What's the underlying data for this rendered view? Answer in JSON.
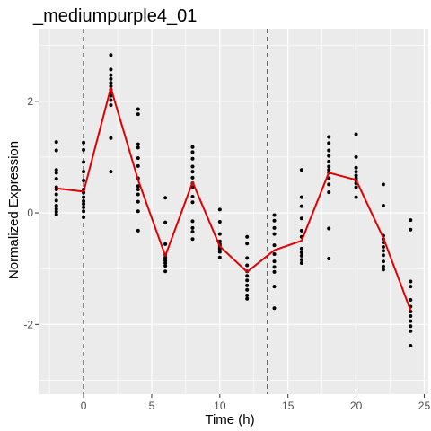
{
  "chart_data": {
    "type": "scatter",
    "title": "_mediumpurple4_01",
    "xlabel": "Time (h)",
    "ylabel": "Normalized Expression",
    "xlim": [
      -3.3,
      25.3
    ],
    "ylim": [
      -3.25,
      3.3
    ],
    "x_ticks": [
      0,
      5,
      10,
      15,
      20,
      25
    ],
    "y_ticks": [
      -2,
      0,
      2
    ],
    "x_tick_labels": [
      "0",
      "5",
      "10",
      "15",
      "20",
      "25"
    ],
    "y_tick_labels": [
      "-2",
      "0",
      "2"
    ],
    "grid": true,
    "background": "#ebebeb",
    "grid_major_color": "#ffffff",
    "point_color": "#000000",
    "line_color": "#e00000",
    "vlines": [
      0,
      13.5
    ],
    "points": [
      {
        "x": -2,
        "ys": [
          1.27,
          1.12,
          0.77,
          0.72,
          0.61,
          0.46,
          0.42,
          0.33,
          0.22,
          0.13,
          0.07,
          0.02,
          -0.03
        ]
      },
      {
        "x": 0,
        "ys": [
          1.26,
          1.13,
          0.91,
          0.74,
          0.58,
          0.42,
          0.36,
          0.28,
          0.21,
          0.16,
          0.1,
          0.03,
          -0.08
        ]
      },
      {
        "x": 2,
        "ys": [
          2.83,
          2.57,
          2.47,
          2.4,
          2.33,
          2.27,
          2.21,
          2.16,
          2.1,
          2.02,
          1.93,
          1.34,
          0.74
        ]
      },
      {
        "x": 4,
        "ys": [
          1.86,
          1.77,
          1.23,
          1.17,
          0.98,
          0.84,
          0.62,
          0.48,
          0.42,
          0.33,
          0.2,
          0.03,
          -0.32
        ]
      },
      {
        "x": 6,
        "ys": [
          0.27,
          -0.17,
          -0.56,
          -0.75,
          -0.8,
          -0.83,
          -0.86,
          -0.9,
          -0.95,
          -1.05
        ]
      },
      {
        "x": 8,
        "ys": [
          1.18,
          1.09,
          0.97,
          0.83,
          0.74,
          0.63,
          0.53,
          0.46,
          0.29,
          0.19,
          -0.15,
          -0.27,
          -0.34,
          -0.47
        ]
      },
      {
        "x": 10,
        "ys": [
          0.06,
          -0.16,
          -0.38,
          -0.51,
          -0.56,
          -0.59,
          -0.63,
          -0.65,
          -0.7,
          -0.8
        ]
      },
      {
        "x": 12,
        "ys": [
          -0.43,
          -0.55,
          -0.81,
          -0.94,
          -1.05,
          -1.13,
          -1.21,
          -1.3,
          -1.38,
          -1.48,
          -1.54
        ]
      },
      {
        "x": 14,
        "ys": [
          -0.04,
          -0.14,
          -0.27,
          -0.38,
          -0.58,
          -0.74,
          -0.87,
          -0.97,
          -1.06,
          -1.32,
          -1.71
        ]
      },
      {
        "x": 16,
        "ys": [
          0.77,
          0.28,
          0.12,
          -0.1,
          -0.32,
          -0.43,
          -0.64,
          -0.71,
          -0.77,
          -0.84,
          -0.9
        ]
      },
      {
        "x": 18,
        "ys": [
          1.36,
          1.25,
          1.12,
          1.02,
          0.92,
          0.83,
          0.77,
          0.72,
          0.62,
          0.51,
          0.37,
          -0.28,
          -0.82
        ]
      },
      {
        "x": 20,
        "ys": [
          1.41,
          1.0,
          0.81,
          0.74,
          0.67,
          0.62,
          0.58,
          0.53,
          0.46,
          0.28
        ]
      },
      {
        "x": 22,
        "ys": [
          0.51,
          0.13,
          -0.41,
          -0.47,
          -0.53,
          -0.61,
          -0.68,
          -0.76,
          -0.87,
          -0.96,
          -1.02
        ]
      },
      {
        "x": 24,
        "ys": [
          -0.13,
          -0.3,
          -1.23,
          -1.32,
          -1.56,
          -1.68,
          -1.77,
          -1.85,
          -1.94,
          -2.03,
          -2.12,
          -2.38
        ]
      }
    ],
    "series": [
      {
        "x": [
          -2,
          0,
          2,
          4,
          6,
          8,
          10,
          12,
          14,
          16,
          18,
          20,
          22,
          24
        ],
        "values": [
          0.44,
          0.38,
          2.24,
          0.59,
          -0.77,
          0.55,
          -0.6,
          -1.06,
          -0.67,
          -0.5,
          0.72,
          0.59,
          -0.45,
          -1.75
        ]
      }
    ]
  }
}
